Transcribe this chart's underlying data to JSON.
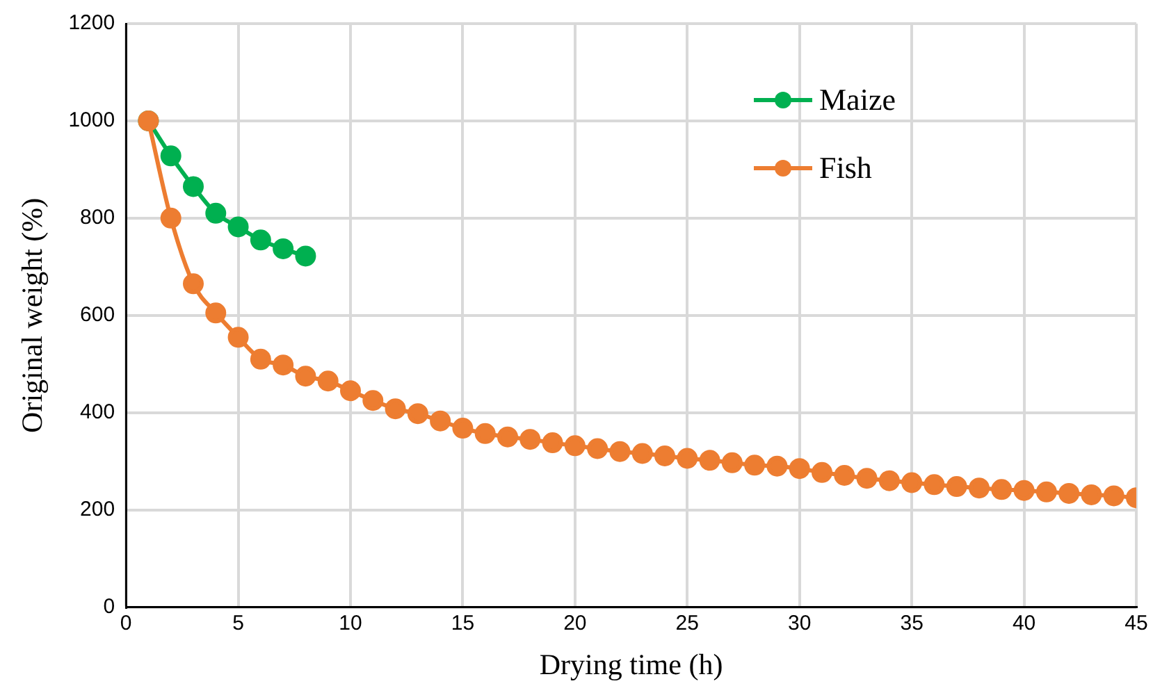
{
  "chart_data": {
    "type": "line",
    "xlabel": "Drying time (h)",
    "ylabel": "Original weight (%)",
    "xlim": [
      0,
      45
    ],
    "xticks": [
      0,
      5,
      10,
      15,
      20,
      25,
      30,
      35,
      40,
      45
    ],
    "ylim": [
      0,
      1200
    ],
    "yticks": [
      0,
      200,
      400,
      600,
      800,
      1000,
      1200
    ],
    "grid": true,
    "legend": "top right",
    "marker": "circle",
    "line_style": "solid",
    "series": [
      {
        "name": "Maize",
        "color": "#00b050",
        "x": [
          1,
          2,
          3,
          4,
          5,
          6,
          7,
          8
        ],
        "values": [
          1000,
          928,
          865,
          810,
          782,
          755,
          737,
          722
        ]
      },
      {
        "name": "Fish",
        "color": "#ed7d31",
        "x": [
          1,
          2,
          3,
          4,
          5,
          6,
          7,
          8,
          9,
          10,
          11,
          12,
          13,
          14,
          15,
          16,
          17,
          18,
          19,
          20,
          21,
          22,
          23,
          24,
          25,
          26,
          27,
          28,
          29,
          30,
          31,
          32,
          33,
          34,
          35,
          36,
          37,
          38,
          39,
          40,
          41,
          42,
          43,
          44,
          45
        ],
        "values": [
          1000,
          800,
          665,
          605,
          555,
          510,
          498,
          475,
          465,
          445,
          425,
          408,
          398,
          383,
          368,
          357,
          350,
          345,
          338,
          332,
          326,
          320,
          316,
          311,
          306,
          302,
          297,
          292,
          290,
          285,
          277,
          271,
          265,
          260,
          256,
          252,
          248,
          245,
          242,
          240,
          237,
          234,
          231,
          229,
          225
        ]
      }
    ]
  }
}
